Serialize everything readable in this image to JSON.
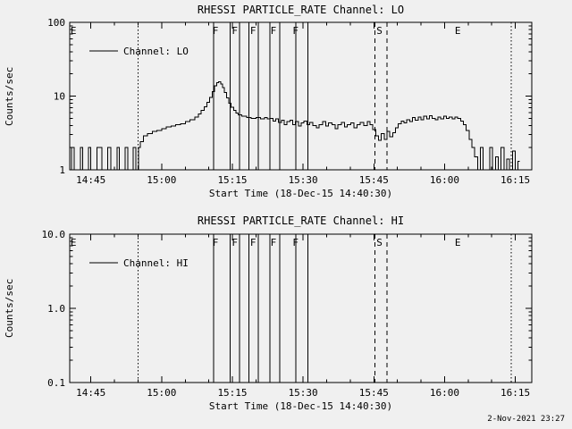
{
  "page": {
    "background": "#f0f0f0",
    "foreground": "#000000",
    "timestamp": "2-Nov-2021 23:27"
  },
  "chart_data": [
    {
      "type": "line",
      "title": "RHESSI PARTICLE_RATE Channel: LO",
      "xlabel": "Start Time (18-Dec-15 14:40:30)",
      "ylabel": "Counts/sec",
      "legend": "Channel: LO",
      "y_scale": "log",
      "y_range": [
        1,
        100
      ],
      "y_ticks": [
        {
          "v": 1,
          "label": "1"
        },
        {
          "v": 10,
          "label": "10"
        },
        {
          "v": 100,
          "label": "100"
        }
      ],
      "x_unit": "minutes since 14:40:30",
      "x_range": [
        0,
        98
      ],
      "x_minor_step": 5,
      "x_ticks": [
        {
          "t": 4.5,
          "label": "14:45"
        },
        {
          "t": 19.5,
          "label": "15:00"
        },
        {
          "t": 34.5,
          "label": "15:15"
        },
        {
          "t": 49.5,
          "label": "15:30"
        },
        {
          "t": 64.5,
          "label": "15:45"
        },
        {
          "t": 79.5,
          "label": "16:00"
        },
        {
          "t": 94.5,
          "label": "16:15"
        }
      ],
      "events": {
        "dotted_lines_t": [
          14.5,
          93.6
        ],
        "solid_lines_t": [
          30.5,
          34.0,
          36.0,
          38.0,
          40.0,
          42.5,
          44.5,
          48.0,
          50.5
        ],
        "dashed_lines_t": [
          64.7,
          67.3
        ],
        "flags": [
          {
            "t": 0.8,
            "label": "E"
          },
          {
            "t": 30.9,
            "label": "F"
          },
          {
            "t": 35.0,
            "label": "F"
          },
          {
            "t": 38.9,
            "label": "F"
          },
          {
            "t": 43.2,
            "label": "F"
          },
          {
            "t": 47.9,
            "label": "F"
          },
          {
            "t": 65.7,
            "label": "S"
          },
          {
            "t": 82.3,
            "label": "E"
          }
        ]
      },
      "series": [
        {
          "name": "Channel: LO",
          "points": [
            [
              0,
              1
            ],
            [
              0.7,
              2
            ],
            [
              1.2,
              1
            ],
            [
              2,
              1
            ],
            [
              2.5,
              2
            ],
            [
              3,
              1
            ],
            [
              3.8,
              1
            ],
            [
              4.2,
              2
            ],
            [
              4.8,
              1
            ],
            [
              5.5,
              1
            ],
            [
              6,
              2
            ],
            [
              6.6,
              2
            ],
            [
              7,
              1
            ],
            [
              7.8,
              1
            ],
            [
              8.4,
              2
            ],
            [
              9,
              1
            ],
            [
              9.8,
              1
            ],
            [
              10.3,
              2
            ],
            [
              10.8,
              1
            ],
            [
              11.5,
              1
            ],
            [
              12,
              2
            ],
            [
              12.6,
              1
            ],
            [
              13.2,
              1
            ],
            [
              13.8,
              2
            ],
            [
              14.3,
              1
            ],
            [
              14.8,
              2
            ],
            [
              15.2,
              2.4
            ],
            [
              16,
              2.9
            ],
            [
              17,
              3.1
            ],
            [
              18,
              3.3
            ],
            [
              19,
              3.4
            ],
            [
              20,
              3.6
            ],
            [
              21,
              3.8
            ],
            [
              22,
              3.9
            ],
            [
              23,
              4.1
            ],
            [
              24,
              4.2
            ],
            [
              25,
              4.5
            ],
            [
              26,
              4.8
            ],
            [
              27,
              5.2
            ],
            [
              27.6,
              5.7
            ],
            [
              28.2,
              6.4
            ],
            [
              28.8,
              7.2
            ],
            [
              29.4,
              8.2
            ],
            [
              30,
              9.6
            ],
            [
              30.5,
              11.5
            ],
            [
              31,
              13.8
            ],
            [
              31.4,
              15.3
            ],
            [
              31.8,
              15.6
            ],
            [
              32.2,
              14.6
            ],
            [
              32.6,
              13
            ],
            [
              33,
              11.2
            ],
            [
              33.5,
              9.4
            ],
            [
              34,
              8
            ],
            [
              34.5,
              7.1
            ],
            [
              35,
              6.4
            ],
            [
              35.5,
              5.9
            ],
            [
              36,
              5.6
            ],
            [
              37,
              5.3
            ],
            [
              38,
              5.1
            ],
            [
              39,
              5
            ],
            [
              40,
              5.1
            ],
            [
              41,
              4.9
            ],
            [
              41.6,
              5.1
            ],
            [
              42.2,
              4.9
            ],
            [
              42.8,
              5
            ],
            [
              43.4,
              4.6
            ],
            [
              44,
              4.9
            ],
            [
              44.6,
              4.4
            ],
            [
              45.2,
              4.7
            ],
            [
              45.8,
              4.1
            ],
            [
              46.4,
              4.5
            ],
            [
              47,
              4.7
            ],
            [
              47.6,
              4.1
            ],
            [
              48.2,
              4.5
            ],
            [
              48.8,
              3.9
            ],
            [
              49.4,
              4.3
            ],
            [
              50,
              4.6
            ],
            [
              50.6,
              4.1
            ],
            [
              51.2,
              4.4
            ],
            [
              52,
              4
            ],
            [
              52.6,
              3.7
            ],
            [
              53.2,
              4.1
            ],
            [
              54,
              4.5
            ],
            [
              54.6,
              3.9
            ],
            [
              55.2,
              4.3
            ],
            [
              56,
              4.1
            ],
            [
              56.6,
              3.6
            ],
            [
              57.2,
              4.1
            ],
            [
              58,
              4.4
            ],
            [
              58.6,
              3.8
            ],
            [
              59.2,
              4.1
            ],
            [
              60,
              4.3
            ],
            [
              60.6,
              3.7
            ],
            [
              61.2,
              4.1
            ],
            [
              62,
              4.4
            ],
            [
              62.8,
              4
            ],
            [
              63.4,
              4.5
            ],
            [
              64,
              4.1
            ],
            [
              64.6,
              3.5
            ],
            [
              65.2,
              2.9
            ],
            [
              65.8,
              2.5
            ],
            [
              66.4,
              3.1
            ],
            [
              67,
              2.6
            ],
            [
              67.6,
              3.3
            ],
            [
              68.2,
              2.8
            ],
            [
              68.8,
              3.2
            ],
            [
              69.4,
              3.7
            ],
            [
              70,
              4.2
            ],
            [
              70.6,
              4.6
            ],
            [
              71.2,
              4.3
            ],
            [
              71.8,
              4.8
            ],
            [
              72.4,
              4.5
            ],
            [
              73,
              5.1
            ],
            [
              73.6,
              4.7
            ],
            [
              74.2,
              5.2
            ],
            [
              74.8,
              4.8
            ],
            [
              75.4,
              5.3
            ],
            [
              76,
              4.9
            ],
            [
              76.6,
              5.4
            ],
            [
              77.2,
              5
            ],
            [
              77.8,
              4.8
            ],
            [
              78.4,
              5.2
            ],
            [
              79,
              4.9
            ],
            [
              79.6,
              5.3
            ],
            [
              80.2,
              5
            ],
            [
              80.8,
              5.2
            ],
            [
              81.4,
              4.9
            ],
            [
              82,
              5.2
            ],
            [
              82.6,
              5
            ],
            [
              83.2,
              4.6
            ],
            [
              83.8,
              4.1
            ],
            [
              84.4,
              3.4
            ],
            [
              85,
              2.6
            ],
            [
              85.6,
              2
            ],
            [
              86.2,
              1.5
            ],
            [
              86.8,
              1
            ],
            [
              87.4,
              2
            ],
            [
              88,
              1
            ],
            [
              88.8,
              1
            ],
            [
              89.4,
              2
            ],
            [
              90,
              1
            ],
            [
              90.6,
              1.5
            ],
            [
              91.2,
              1
            ],
            [
              91.8,
              2
            ],
            [
              92.4,
              1
            ],
            [
              93,
              1.4
            ],
            [
              93.6,
              1
            ],
            [
              94.2,
              1.8
            ],
            [
              94.8,
              1
            ],
            [
              95.4,
              1.3
            ]
          ]
        }
      ]
    },
    {
      "type": "line",
      "title": "RHESSI PARTICLE_RATE Channel: HI",
      "xlabel": "Start Time (18-Dec-15 14:40:30)",
      "ylabel": "Counts/sec",
      "legend": "Channel: HI",
      "y_scale": "log",
      "y_range": [
        0.1,
        10
      ],
      "y_ticks": [
        {
          "v": 0.1,
          "label": "0.1"
        },
        {
          "v": 1,
          "label": "1.0"
        },
        {
          "v": 10,
          "label": "10.0"
        }
      ],
      "x_unit": "minutes since 14:40:30",
      "x_range": [
        0,
        98
      ],
      "x_minor_step": 5,
      "x_ticks": [
        {
          "t": 4.5,
          "label": "14:45"
        },
        {
          "t": 19.5,
          "label": "15:00"
        },
        {
          "t": 34.5,
          "label": "15:15"
        },
        {
          "t": 49.5,
          "label": "15:30"
        },
        {
          "t": 64.5,
          "label": "15:45"
        },
        {
          "t": 79.5,
          "label": "16:00"
        },
        {
          "t": 94.5,
          "label": "16:15"
        }
      ],
      "events": {
        "dotted_lines_t": [
          14.5,
          93.6
        ],
        "solid_lines_t": [
          30.5,
          34.0,
          36.0,
          38.0,
          40.0,
          42.5,
          44.5,
          48.0,
          50.5
        ],
        "dashed_lines_t": [
          64.7,
          67.3
        ],
        "flags": [
          {
            "t": 0.8,
            "label": "E"
          },
          {
            "t": 30.9,
            "label": "F"
          },
          {
            "t": 35.0,
            "label": "F"
          },
          {
            "t": 38.9,
            "label": "F"
          },
          {
            "t": 43.2,
            "label": "F"
          },
          {
            "t": 47.9,
            "label": "F"
          },
          {
            "t": 65.7,
            "label": "S"
          },
          {
            "t": 82.3,
            "label": "E"
          }
        ]
      },
      "series": [
        {
          "name": "Channel: HI",
          "points": []
        }
      ]
    }
  ]
}
